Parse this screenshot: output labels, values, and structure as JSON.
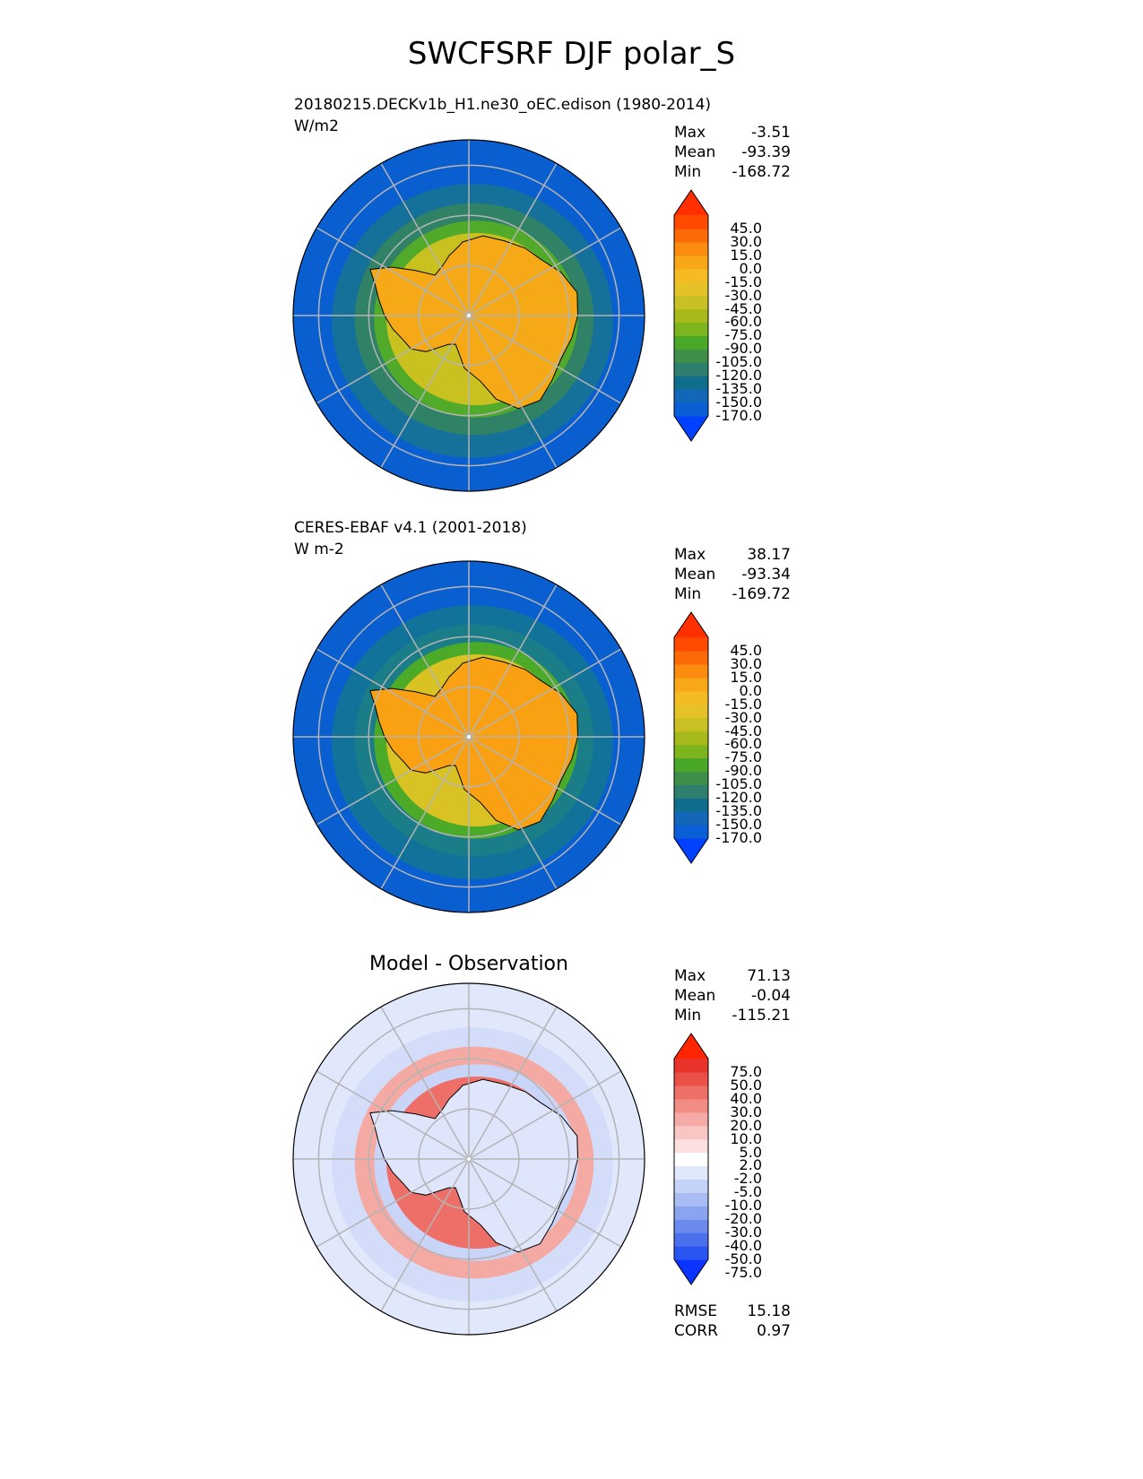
{
  "figure": {
    "title": "SWCFSRF DJF polar_S"
  },
  "chart_data": [
    {
      "type": "heatmap",
      "projection": "south polar stereographic",
      "title": "20180215.DECKv1b_H1.ne30_oEC.edison (1980-2014)",
      "units": "W/m2",
      "stats": {
        "max_label": "Max",
        "max": "-3.51",
        "mean_label": "Mean",
        "mean": "-93.39",
        "min_label": "Min",
        "min": "-168.72"
      },
      "colorbar": {
        "ticks": [
          "45.0",
          "30.0",
          "15.0",
          "0.0",
          "-15.0",
          "-30.0",
          "-45.0",
          "-60.0",
          "-75.0",
          "-90.0",
          "-105.0",
          "-120.0",
          "-135.0",
          "-150.0",
          "-170.0"
        ],
        "colors": [
          "#0040ff",
          "#0a5fd6",
          "#1467b8",
          "#0f6e8c",
          "#2f7f6e",
          "#3f8f4a",
          "#4aa828",
          "#7db51e",
          "#a8b91c",
          "#c8c024",
          "#e5c228",
          "#f4bb22",
          "#f8a816",
          "#fb8c10",
          "#fc6a08",
          "#ff4a00",
          "#ff2f00"
        ],
        "extend": "both"
      },
      "field": {
        "continent": "#f6a916",
        "coast_ring": "#c9c11f",
        "ring2": "#52aa2a",
        "ring3": "#2f8266",
        "ocean": "#15709a",
        "outer": "#0a5fd0"
      }
    },
    {
      "type": "heatmap",
      "projection": "south polar stereographic",
      "title": "CERES-EBAF v4.1 (2001-2018)",
      "units": "W m-2",
      "stats": {
        "max_label": "Max",
        "max": "38.17",
        "mean_label": "Mean",
        "mean": "-93.34",
        "min_label": "Min",
        "min": "-169.72"
      },
      "colorbar": {
        "ticks": [
          "45.0",
          "30.0",
          "15.0",
          "0.0",
          "-15.0",
          "-30.0",
          "-45.0",
          "-60.0",
          "-75.0",
          "-90.0",
          "-105.0",
          "-120.0",
          "-135.0",
          "-150.0",
          "-170.0"
        ],
        "colors": [
          "#0040ff",
          "#0a5fd6",
          "#1467b8",
          "#0f6e8c",
          "#2f7f6e",
          "#3f8f4a",
          "#4aa828",
          "#7db51e",
          "#a8b91c",
          "#c8c024",
          "#e5c228",
          "#f4bb22",
          "#f8a816",
          "#fb8c10",
          "#fc6a08",
          "#ff4a00",
          "#ff2f00"
        ],
        "extend": "both"
      },
      "field": {
        "continent": "#f9a113",
        "coast_ring": "#d8c224",
        "ring2": "#4caa29",
        "ring3": "#1a7d88",
        "ocean": "#12739a",
        "outer": "#0a5fd0"
      }
    },
    {
      "type": "heatmap",
      "projection": "south polar stereographic",
      "title": "Model - Observation",
      "stats": {
        "max_label": "Max",
        "max": "71.13",
        "mean_label": "Mean",
        "mean": "-0.04",
        "min_label": "Min",
        "min": "-115.21"
      },
      "extra_stats": {
        "rmse_label": "RMSE",
        "rmse": "15.18",
        "corr_label": "CORR",
        "corr": "0.97"
      },
      "colorbar": {
        "ticks": [
          "75.0",
          "50.0",
          "40.0",
          "30.0",
          "20.0",
          "10.0",
          "5.0",
          "2.0",
          "-2.0",
          "-5.0",
          "-10.0",
          "-20.0",
          "-30.0",
          "-40.0",
          "-50.0",
          "-75.0"
        ],
        "colors": [
          "#0a33ff",
          "#2a55f0",
          "#4a70ee",
          "#6a8aee",
          "#8aa4f0",
          "#a9bdf4",
          "#c6d3f8",
          "#e1e8fb",
          "#ffffff",
          "#fbe0df",
          "#f8c7c4",
          "#f5aaa5",
          "#f28d86",
          "#ee6f67",
          "#eb5048",
          "#e8322a",
          "#ff2500"
        ],
        "extend": "both"
      },
      "field": {
        "continent": "#dfe6fb",
        "coast_ring": "#ee6f67",
        "ring2": "#c8d4f8",
        "ring3": "#f4a9a3",
        "ocean": "#d3ddf9",
        "outer": "#e1e8fb"
      }
    }
  ]
}
